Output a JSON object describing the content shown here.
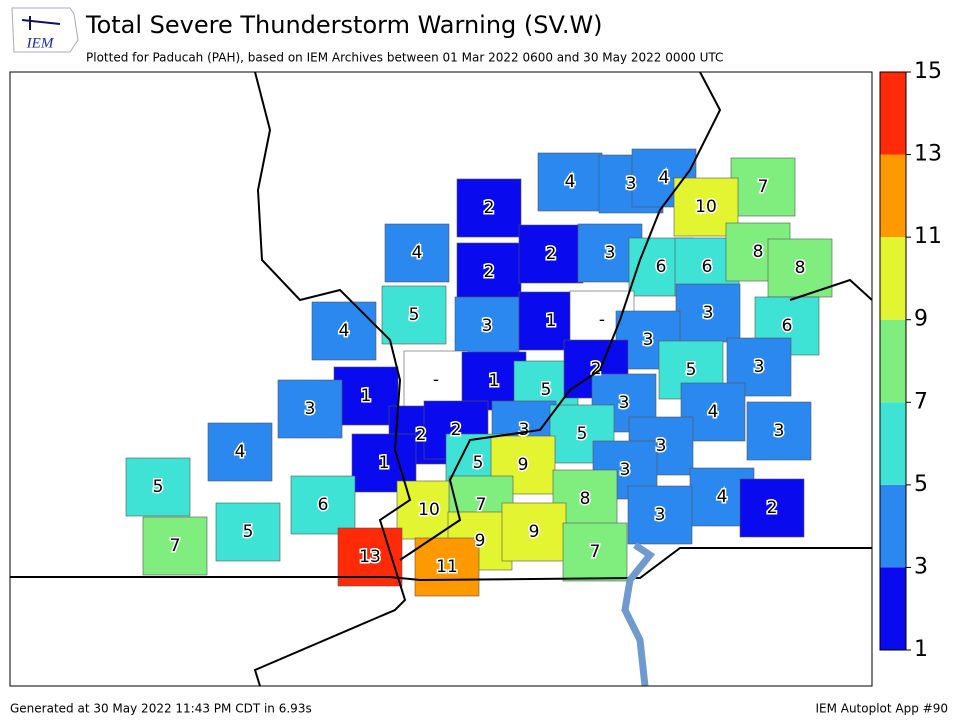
{
  "header": {
    "logo_text": "IEM",
    "title": "Total Severe Thunderstorm Warning (SV.W)",
    "subtitle": "Plotted for Paducah (PAH), based on IEM Archives  between 01 Mar 2022 0600 and 30 May 2022 0000 UTC"
  },
  "map": {
    "no_data_label": "-",
    "values": [
      2,
      4,
      3,
      4,
      7,
      10,
      4,
      2,
      2,
      3,
      6,
      6,
      8,
      8,
      5,
      3,
      1,
      null,
      3,
      6,
      4,
      3,
      null,
      1,
      5,
      2,
      5,
      3,
      1,
      3,
      3,
      4,
      3,
      2,
      2,
      3,
      5,
      3,
      4,
      1,
      5,
      9,
      3,
      5,
      6,
      10,
      7,
      8,
      4,
      2,
      3,
      5,
      7,
      9,
      9,
      7,
      13,
      11
    ]
  },
  "colorbar": {
    "ylim": [
      1,
      15
    ],
    "yticks": [
      1,
      3,
      5,
      7,
      9,
      11,
      13,
      15
    ],
    "bin_colors": [
      "#0a0aee",
      "#2b88ee",
      "#3fe3d5",
      "#7fee7f",
      "#e3f530",
      "#ff9900",
      "#ff2a08"
    ]
  },
  "footer": {
    "left": "Generated at 30 May 2022 11:43 PM CDT in 6.93s",
    "right": "IEM Autoplot App #90"
  }
}
